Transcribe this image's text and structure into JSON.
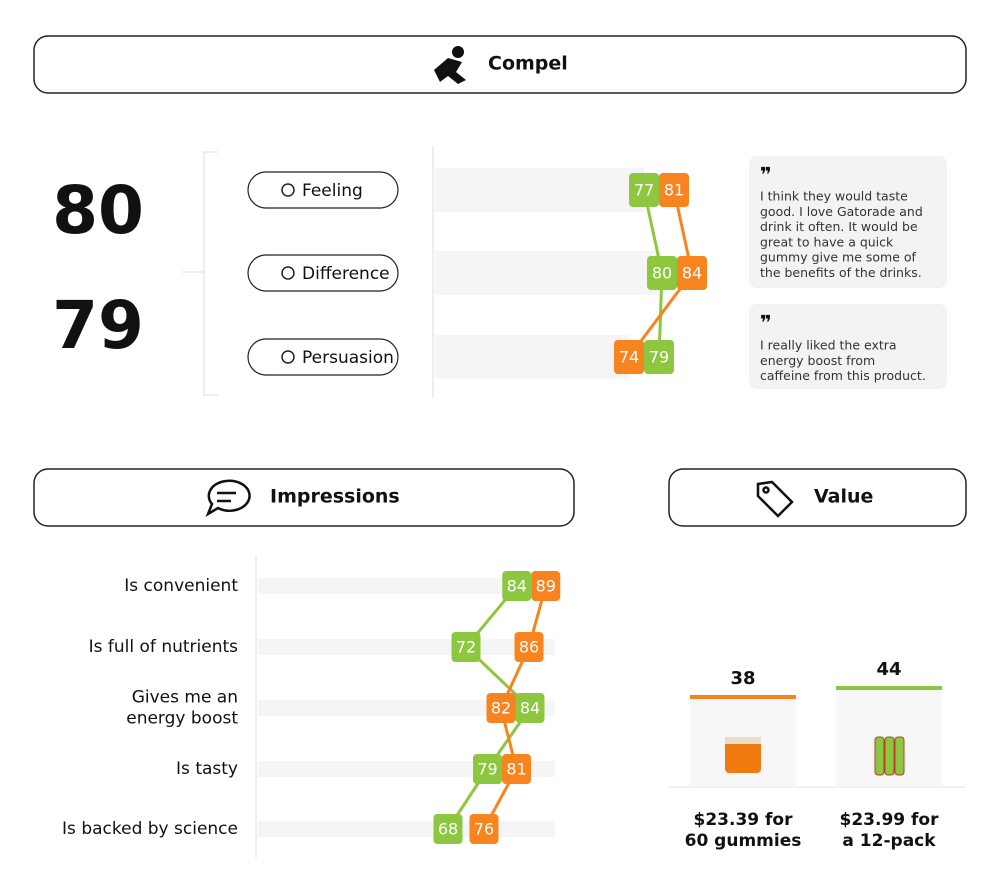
{
  "series_colors": [
    "#f7841f",
    "#8dc63f"
  ],
  "compel": {
    "title": "Compel",
    "scores": [
      80,
      79
    ],
    "rows": [
      {
        "label": "Feeling",
        "values": [
          81,
          77
        ]
      },
      {
        "label": "Difference",
        "values": [
          84,
          80
        ]
      },
      {
        "label": "Persuasion",
        "values": [
          74,
          79
        ]
      }
    ],
    "quotes": [
      [
        "I think they would taste",
        "good. I love Gatorade and",
        "drink it often. It would be",
        "great to have a quick",
        "gummy give me some of",
        "the benefits of the drinks."
      ],
      [
        "I really liked the extra",
        "energy boost from",
        "caffeine from this product."
      ]
    ]
  },
  "impressions": {
    "title": "Impressions",
    "rows": [
      {
        "label_lines": [
          "Is convenient"
        ],
        "values": [
          89,
          84
        ]
      },
      {
        "label_lines": [
          "Is full of nutrients"
        ],
        "values": [
          86,
          72
        ]
      },
      {
        "label_lines": [
          "Gives me an",
          "energy boost"
        ],
        "values": [
          82,
          84
        ]
      },
      {
        "label_lines": [
          "Is tasty"
        ],
        "values": [
          81,
          79
        ]
      },
      {
        "label_lines": [
          "Is backed by science"
        ],
        "values": [
          76,
          68
        ]
      }
    ]
  },
  "value": {
    "title": "Value",
    "products": [
      {
        "score": 38,
        "price_lines": [
          "$23.39 for",
          "60 gummies"
        ]
      },
      {
        "score": 44,
        "price_lines": [
          "$23.99 for",
          "a 12-pack"
        ]
      }
    ]
  }
}
